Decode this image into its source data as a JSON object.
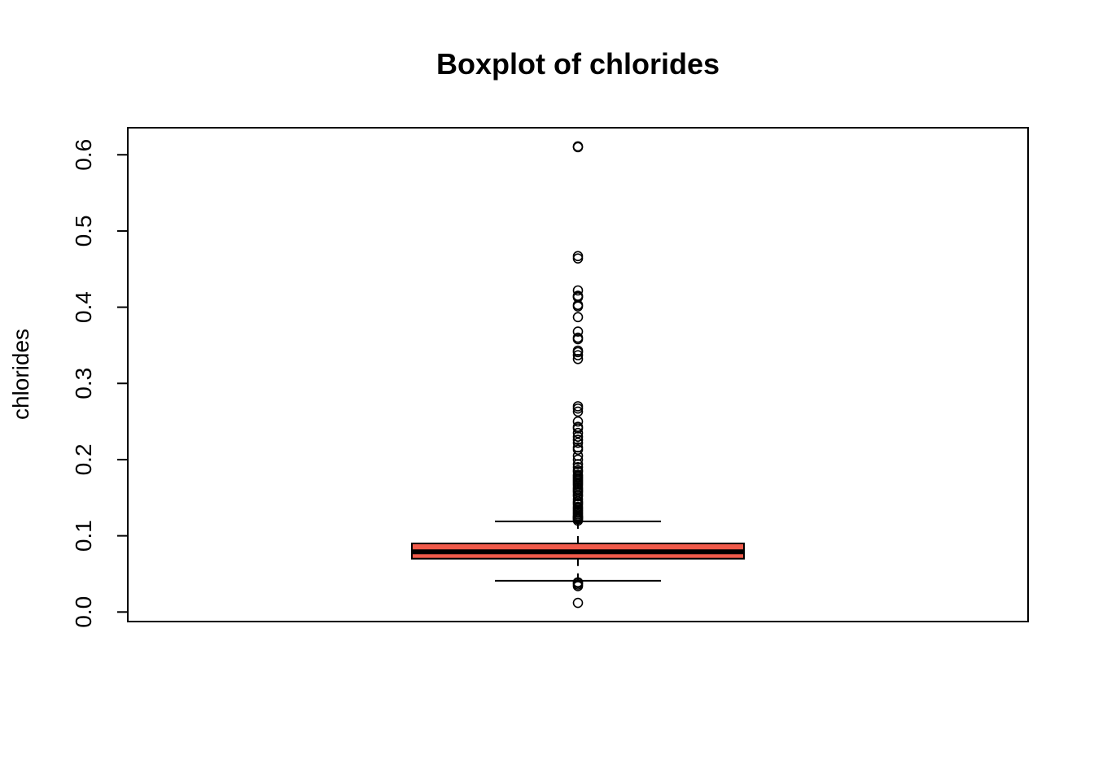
{
  "chart_data": {
    "type": "boxplot",
    "title": "Boxplot of chlorides",
    "xlabel": "",
    "ylabel": "chlorides",
    "ylim": [
      -0.0125,
      0.6355
    ],
    "y_ticks": [
      "0.0",
      "0.1",
      "0.2",
      "0.3",
      "0.4",
      "0.5",
      "0.6"
    ],
    "grid": false,
    "box_color": "#F05A4A",
    "box": {
      "whisker_low": 0.041,
      "q1": 0.07,
      "median": 0.079,
      "q3": 0.09,
      "whisker_high": 0.119
    },
    "outliers": [
      0.012,
      0.034,
      0.036,
      0.038,
      0.039,
      0.12,
      0.122,
      0.123,
      0.124,
      0.125,
      0.126,
      0.128,
      0.13,
      0.132,
      0.134,
      0.136,
      0.138,
      0.141,
      0.143,
      0.145,
      0.148,
      0.152,
      0.154,
      0.157,
      0.159,
      0.161,
      0.163,
      0.166,
      0.168,
      0.17,
      0.172,
      0.174,
      0.176,
      0.178,
      0.18,
      0.184,
      0.186,
      0.19,
      0.194,
      0.2,
      0.205,
      0.213,
      0.216,
      0.222,
      0.226,
      0.23,
      0.235,
      0.241,
      0.243,
      0.25,
      0.263,
      0.267,
      0.27,
      0.332,
      0.337,
      0.341,
      0.343,
      0.358,
      0.36,
      0.368,
      0.387,
      0.401,
      0.403,
      0.413,
      0.414,
      0.415,
      0.422,
      0.464,
      0.467,
      0.61,
      0.611
    ]
  }
}
